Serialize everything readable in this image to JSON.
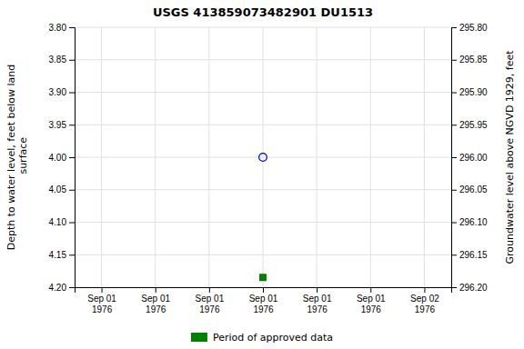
{
  "chart_data": {
    "type": "scatter",
    "title": "USGS 413859073482901 DU1513",
    "y_label": "Depth to water level, feet below land\n surface",
    "y2_label": "Groundwater level above NGVD 1929, feet",
    "categories": [
      "Sep 01\n1976",
      "Sep 01\n1976",
      "Sep 01\n1976",
      "Sep 01\n1976",
      "Sep 01\n1976",
      "Sep 01\n1976",
      "Sep 02\n1976"
    ],
    "series": [
      {
        "color": "#0000cc",
        "marker": "circle-open",
        "values": [
          null,
          null,
          null,
          4.0,
          null,
          null,
          null
        ]
      },
      {
        "name": "Period of approved data",
        "color": "#008000",
        "marker": "square",
        "values": [
          null,
          null,
          null,
          4.185,
          null,
          null,
          null
        ]
      }
    ],
    "ylim": [
      4.2,
      3.8
    ],
    "yticks": [
      {
        "value": 3.8,
        "label": "3.80"
      },
      3.85,
      {
        "value": 3.9,
        "label": "3.90"
      },
      3.95,
      {
        "value": 4,
        "label": "4.00"
      },
      4.05,
      {
        "value": 4.1,
        "label": "4.10"
      },
      4.15,
      {
        "value": 4.2,
        "label": "4.20"
      }
    ],
    "y2lim": [
      296.2,
      295.8
    ],
    "y2ticks": [
      {
        "value": 296.2,
        "label": "296.20"
      },
      296.15,
      {
        "value": 296.1,
        "label": "296.10"
      },
      296.05,
      {
        "value": 296,
        "label": "296.00"
      },
      295.95,
      {
        "value": 295.9,
        "label": "295.90"
      },
      295.85,
      {
        "value": 295.8,
        "label": "295.80"
      }
    ],
    "grid": true,
    "legend": "bottom"
  }
}
